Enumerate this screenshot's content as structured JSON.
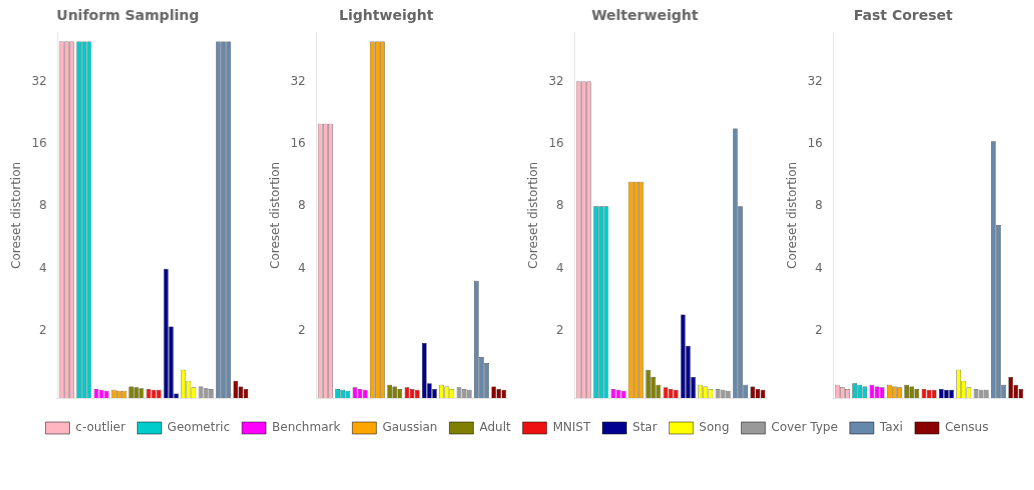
{
  "chart_data": [
    {
      "type": "bar",
      "title": "Uniform Sampling",
      "y_label": "Coreset distortion",
      "log": "y",
      "ylim": [
        0.95,
        55
      ],
      "yticks": [
        {
          "value": 1,
          "label": ""
        },
        2,
        4,
        8,
        16,
        32
      ],
      "grid": false,
      "tick_labels": "y",
      "legend": "bottom",
      "series": [
        {
          "name": "c-outlier",
          "color": "#FFB6C1",
          "values": [
            50,
            50,
            50
          ]
        },
        {
          "name": "Geometric",
          "color": "#00CCCC",
          "values": [
            50,
            50,
            50
          ]
        },
        {
          "name": "Benchmark",
          "color": "#FF00FF",
          "values": [
            1.05,
            1.04,
            1.03
          ]
        },
        {
          "name": "Gaussian",
          "color": "#FFA500",
          "values": [
            1.04,
            1.03,
            1.03
          ]
        },
        {
          "name": "Adult",
          "color": "#808000",
          "values": [
            1.08,
            1.07,
            1.06
          ]
        },
        {
          "name": "MNIST",
          "color": "#EE1111",
          "values": [
            1.05,
            1.04,
            1.04
          ]
        },
        {
          "name": "Star",
          "color": "#000090",
          "values": [
            4.0,
            2.1,
            1.0
          ]
        },
        {
          "name": "Song",
          "color": "#FFFF00",
          "values": [
            1.3,
            1.15,
            1.07
          ]
        },
        {
          "name": "Cover Type",
          "color": "#999999",
          "values": [
            1.08,
            1.06,
            1.05
          ]
        },
        {
          "name": "Taxi",
          "color": "#6688AA",
          "values": [
            50,
            50,
            50
          ]
        },
        {
          "name": "Census",
          "color": "#8B0000",
          "values": [
            1.15,
            1.08,
            1.05
          ]
        }
      ]
    },
    {
      "type": "bar",
      "title": "Lightweight",
      "y_label": "Coreset distortion",
      "log": "y",
      "ylim": [
        0.95,
        55
      ],
      "yticks": [
        {
          "value": 1,
          "label": ""
        },
        2,
        4,
        8,
        16,
        32
      ],
      "grid": false,
      "tick_labels": "y",
      "legend": "bottom",
      "series": [
        {
          "name": "c-outlier",
          "color": "#FFB6C1",
          "values": [
            20,
            20,
            20
          ]
        },
        {
          "name": "Geometric",
          "color": "#00CCCC",
          "values": [
            1.05,
            1.04,
            1.03
          ]
        },
        {
          "name": "Benchmark",
          "color": "#FF00FF",
          "values": [
            1.07,
            1.05,
            1.04
          ]
        },
        {
          "name": "Gaussian",
          "color": "#FFA500",
          "values": [
            50,
            50,
            50
          ]
        },
        {
          "name": "Adult",
          "color": "#808000",
          "values": [
            1.1,
            1.08,
            1.05
          ]
        },
        {
          "name": "MNIST",
          "color": "#EE1111",
          "values": [
            1.07,
            1.05,
            1.04
          ]
        },
        {
          "name": "Star",
          "color": "#000090",
          "values": [
            1.75,
            1.12,
            1.05
          ]
        },
        {
          "name": "Song",
          "color": "#FFFF00",
          "values": [
            1.1,
            1.08,
            1.05
          ]
        },
        {
          "name": "Cover Type",
          "color": "#999999",
          "values": [
            1.07,
            1.05,
            1.04
          ]
        },
        {
          "name": "Taxi",
          "color": "#6688AA",
          "values": [
            3.5,
            1.5,
            1.4
          ]
        },
        {
          "name": "Census",
          "color": "#8B0000",
          "values": [
            1.08,
            1.05,
            1.04
          ]
        }
      ]
    },
    {
      "type": "bar",
      "title": "Welterweight",
      "y_label": "Coreset distortion",
      "log": "y",
      "ylim": [
        0.95,
        55
      ],
      "yticks": [
        {
          "value": 1,
          "label": ""
        },
        2,
        4,
        8,
        16,
        32
      ],
      "grid": false,
      "tick_labels": "y",
      "legend": "bottom",
      "series": [
        {
          "name": "c-outlier",
          "color": "#FFB6C1",
          "values": [
            32,
            32,
            32
          ]
        },
        {
          "name": "Geometric",
          "color": "#00CCCC",
          "values": [
            8.0,
            8.0,
            8.0
          ]
        },
        {
          "name": "Benchmark",
          "color": "#FF00FF",
          "values": [
            1.05,
            1.04,
            1.03
          ]
        },
        {
          "name": "Gaussian",
          "color": "#FFA500",
          "values": [
            10.5,
            10.5,
            10.5
          ]
        },
        {
          "name": "Adult",
          "color": "#808000",
          "values": [
            1.3,
            1.2,
            1.1
          ]
        },
        {
          "name": "MNIST",
          "color": "#EE1111",
          "values": [
            1.07,
            1.05,
            1.04
          ]
        },
        {
          "name": "Star",
          "color": "#000090",
          "values": [
            2.4,
            1.7,
            1.2
          ]
        },
        {
          "name": "Song",
          "color": "#FFFF00",
          "values": [
            1.1,
            1.08,
            1.05
          ]
        },
        {
          "name": "Cover Type",
          "color": "#999999",
          "values": [
            1.05,
            1.04,
            1.03
          ]
        },
        {
          "name": "Taxi",
          "color": "#6688AA",
          "values": [
            19.0,
            8.0,
            1.1
          ]
        },
        {
          "name": "Census",
          "color": "#8B0000",
          "values": [
            1.08,
            1.05,
            1.04
          ]
        }
      ]
    },
    {
      "type": "bar",
      "title": "Fast Coreset",
      "y_label": "Coreset distortion",
      "log": "y",
      "ylim": [
        0.95,
        55
      ],
      "yticks": [
        {
          "value": 1,
          "label": ""
        },
        2,
        4,
        8,
        16,
        32
      ],
      "grid": false,
      "tick_labels": "y",
      "legend": "bottom",
      "series": [
        {
          "name": "c-outlier",
          "color": "#FFB6C1",
          "values": [
            1.1,
            1.07,
            1.05
          ]
        },
        {
          "name": "Geometric",
          "color": "#00CCCC",
          "values": [
            1.12,
            1.1,
            1.08
          ]
        },
        {
          "name": "Benchmark",
          "color": "#FF00FF",
          "values": [
            1.1,
            1.08,
            1.07
          ]
        },
        {
          "name": "Gaussian",
          "color": "#FFA500",
          "values": [
            1.1,
            1.08,
            1.07
          ]
        },
        {
          "name": "Adult",
          "color": "#808000",
          "values": [
            1.1,
            1.08,
            1.05
          ]
        },
        {
          "name": "MNIST",
          "color": "#EE1111",
          "values": [
            1.05,
            1.04,
            1.04
          ]
        },
        {
          "name": "Star",
          "color": "#000090",
          "values": [
            1.05,
            1.04,
            1.04
          ]
        },
        {
          "name": "Song",
          "color": "#FFFF00",
          "values": [
            1.3,
            1.15,
            1.07
          ]
        },
        {
          "name": "Cover Type",
          "color": "#999999",
          "values": [
            1.05,
            1.04,
            1.04
          ]
        },
        {
          "name": "Taxi",
          "color": "#6688AA",
          "values": [
            16.5,
            6.5,
            1.1
          ]
        },
        {
          "name": "Census",
          "color": "#8B0000",
          "values": [
            1.2,
            1.1,
            1.05
          ]
        }
      ]
    }
  ]
}
